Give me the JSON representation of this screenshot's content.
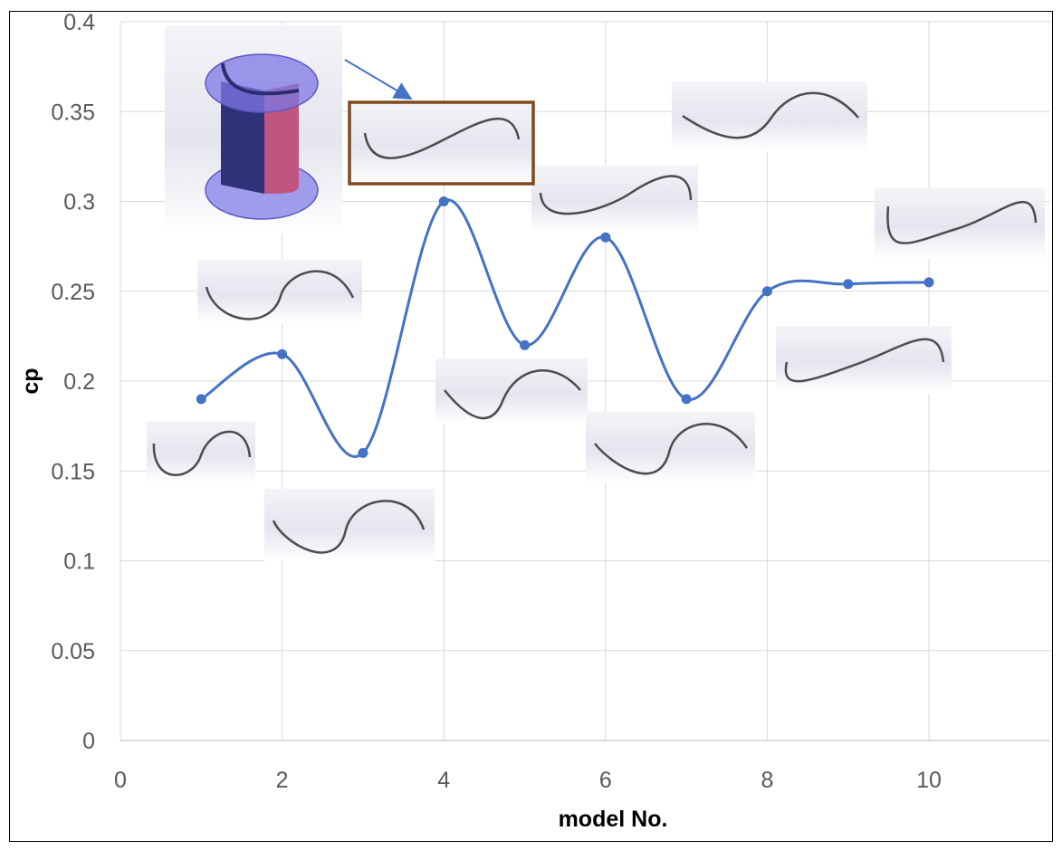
{
  "chart_data": {
    "type": "line",
    "title": "",
    "xlabel": "model No.",
    "ylabel": "cp",
    "xlim": [
      0,
      11.5
    ],
    "ylim": [
      0,
      0.4
    ],
    "x_ticks": [
      "0",
      "2",
      "4",
      "6",
      "8",
      "10"
    ],
    "y_ticks": [
      "0",
      "0.05",
      "0.1",
      "0.15",
      "0.2",
      "0.25",
      "0.3",
      "0.35",
      "0.4"
    ],
    "grid": true,
    "smooth": true,
    "series": [
      {
        "x": [
          1,
          2,
          3,
          4,
          5,
          6,
          7,
          8,
          9,
          10
        ],
        "values": [
          0.19,
          0.215,
          0.16,
          0.3,
          0.22,
          0.28,
          0.19,
          0.25,
          0.254,
          0.255
        ],
        "color": "#4472C4"
      }
    ],
    "annotations": {
      "insets": "blade profile sketch for each model",
      "highlight": "model 4 profile boxed, arrow from 3D rotor view",
      "highlight_color": "#7F4A1E"
    }
  }
}
